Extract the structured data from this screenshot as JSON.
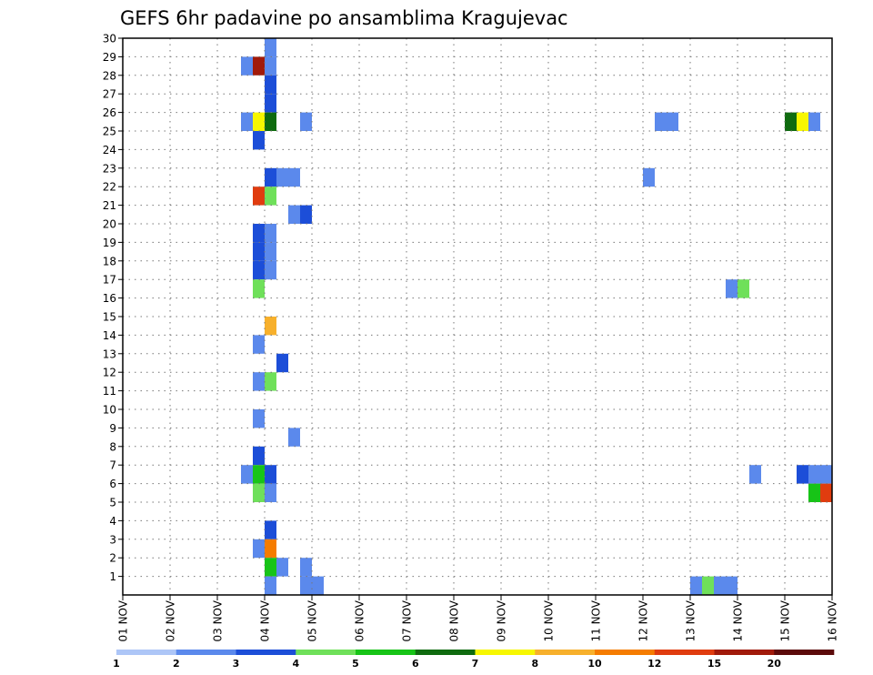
{
  "chart_data": {
    "type": "heatmap",
    "title": "GEFS 6hr padavine po ansamblima Kragujevac",
    "x_ticks": [
      "01 NOV",
      "02 NOV",
      "03 NOV",
      "04 NOV",
      "05 NOV",
      "06 NOV",
      "07 NOV",
      "08 NOV",
      "09 NOV",
      "10 NOV",
      "11 NOV",
      "12 NOV",
      "13 NOV",
      "14 NOV",
      "15 NOV",
      "16 NOV"
    ],
    "y_ticks": [
      "1",
      "2",
      "3",
      "4",
      "5",
      "6",
      "7",
      "8",
      "9",
      "10",
      "11",
      "12",
      "13",
      "14",
      "15",
      "16",
      "17",
      "18",
      "19",
      "20",
      "21",
      "22",
      "23",
      "24",
      "25",
      "26",
      "27",
      "28",
      "29",
      "30"
    ],
    "xlim": [
      "01 NOV",
      "16 NOV"
    ],
    "ylim": [
      0,
      30
    ],
    "x_step": "6hr",
    "grid": true,
    "colorbar": {
      "labels": [
        "1",
        "2",
        "3",
        "4",
        "5",
        "6",
        "7",
        "8",
        "10",
        "12",
        "15",
        "20"
      ],
      "colors": [
        "#adc6f7",
        "#5b89ec",
        "#1c4ed8",
        "#6fe05a",
        "#17c417",
        "#0f6b0f",
        "#f7f700",
        "#f7b02c",
        "#f57c00",
        "#e03c0f",
        "#a11a0a",
        "#5c0a0a"
      ]
    },
    "cells": [
      {
        "x": "03 NOV 12Z",
        "y": 28,
        "c": 1
      },
      {
        "x": "03 NOV 18Z",
        "y": 28,
        "c": 10
      },
      {
        "x": "04 NOV 00Z",
        "y": 28,
        "c": 1
      },
      {
        "x": "04 NOV 00Z",
        "y": 29,
        "c": 1
      },
      {
        "x": "04 NOV 00Z",
        "y": 27,
        "c": 2
      },
      {
        "x": "04 NOV 00Z",
        "y": 26,
        "c": 2
      },
      {
        "x": "03 NOV 12Z",
        "y": 25,
        "c": 1
      },
      {
        "x": "03 NOV 18Z",
        "y": 25,
        "c": 6
      },
      {
        "x": "04 NOV 00Z",
        "y": 25,
        "c": 5
      },
      {
        "x": "04 NOV 18Z",
        "y": 25,
        "c": 1
      },
      {
        "x": "03 NOV 18Z",
        "y": 24,
        "c": 2
      },
      {
        "x": "04 NOV 00Z",
        "y": 22,
        "c": 2
      },
      {
        "x": "04 NOV 06Z",
        "y": 22,
        "c": 1
      },
      {
        "x": "04 NOV 12Z",
        "y": 22,
        "c": 1
      },
      {
        "x": "03 NOV 18Z",
        "y": 21,
        "c": 9
      },
      {
        "x": "04 NOV 00Z",
        "y": 21,
        "c": 3
      },
      {
        "x": "04 NOV 12Z",
        "y": 20,
        "c": 1
      },
      {
        "x": "04 NOV 18Z",
        "y": 20,
        "c": 2
      },
      {
        "x": "03 NOV 18Z",
        "y": 19,
        "c": 2
      },
      {
        "x": "04 NOV 00Z",
        "y": 19,
        "c": 1
      },
      {
        "x": "03 NOV 18Z",
        "y": 18,
        "c": 2
      },
      {
        "x": "04 NOV 00Z",
        "y": 18,
        "c": 1
      },
      {
        "x": "03 NOV 18Z",
        "y": 17,
        "c": 2
      },
      {
        "x": "04 NOV 00Z",
        "y": 17,
        "c": 1
      },
      {
        "x": "03 NOV 18Z",
        "y": 16,
        "c": 3
      },
      {
        "x": "04 NOV 00Z",
        "y": 14,
        "c": 7
      },
      {
        "x": "03 NOV 18Z",
        "y": 13,
        "c": 1
      },
      {
        "x": "04 NOV 06Z",
        "y": 12,
        "c": 2
      },
      {
        "x": "03 NOV 18Z",
        "y": 11,
        "c": 1
      },
      {
        "x": "04 NOV 00Z",
        "y": 11,
        "c": 3
      },
      {
        "x": "03 NOV 18Z",
        "y": 9,
        "c": 1
      },
      {
        "x": "04 NOV 12Z",
        "y": 8,
        "c": 1
      },
      {
        "x": "03 NOV 18Z",
        "y": 7,
        "c": 2
      },
      {
        "x": "03 NOV 12Z",
        "y": 6,
        "c": 1
      },
      {
        "x": "03 NOV 18Z",
        "y": 6,
        "c": 4
      },
      {
        "x": "04 NOV 00Z",
        "y": 6,
        "c": 2
      },
      {
        "x": "03 NOV 18Z",
        "y": 5,
        "c": 3
      },
      {
        "x": "04 NOV 00Z",
        "y": 5,
        "c": 1
      },
      {
        "x": "04 NOV 00Z",
        "y": 3,
        "c": 2
      },
      {
        "x": "03 NOV 18Z",
        "y": 2,
        "c": 1
      },
      {
        "x": "04 NOV 00Z",
        "y": 2,
        "c": 8
      },
      {
        "x": "04 NOV 00Z",
        "y": 1,
        "c": 4
      },
      {
        "x": "04 NOV 06Z",
        "y": 1,
        "c": 1
      },
      {
        "x": "04 NOV 18Z",
        "y": 1,
        "c": 1
      },
      {
        "x": "04 NOV 00Z",
        "y": 0,
        "c": 1
      },
      {
        "x": "04 NOV 18Z",
        "y": 0,
        "c": 1
      },
      {
        "x": "05 NOV 00Z",
        "y": 0,
        "c": 1
      },
      {
        "x": "12 NOV 06Z",
        "y": 25,
        "c": 1
      },
      {
        "x": "12 NOV 12Z",
        "y": 25,
        "c": 1
      },
      {
        "x": "12 NOV 00Z",
        "y": 22,
        "c": 1
      },
      {
        "x": "13 NOV 18Z",
        "y": 16,
        "c": 1
      },
      {
        "x": "14 NOV 00Z",
        "y": 16,
        "c": 3
      },
      {
        "x": "14 NOV 06Z",
        "y": 6,
        "c": 1
      },
      {
        "x": "13 NOV 00Z",
        "y": 0,
        "c": 1
      },
      {
        "x": "13 NOV 06Z",
        "y": 0,
        "c": 3
      },
      {
        "x": "13 NOV 12Z",
        "y": 0,
        "c": 1
      },
      {
        "x": "13 NOV 18Z",
        "y": 0,
        "c": 1
      },
      {
        "x": "15 NOV 00Z",
        "y": 25,
        "c": 5
      },
      {
        "x": "15 NOV 06Z",
        "y": 25,
        "c": 6
      },
      {
        "x": "15 NOV 12Z",
        "y": 25,
        "c": 1
      },
      {
        "x": "15 NOV 06Z",
        "y": 6,
        "c": 2
      },
      {
        "x": "15 NOV 12Z",
        "y": 6,
        "c": 1
      },
      {
        "x": "15 NOV 18Z",
        "y": 6,
        "c": 1
      },
      {
        "x": "15 NOV 12Z",
        "y": 5,
        "c": 4
      },
      {
        "x": "15 NOV 18Z",
        "y": 5,
        "c": 9
      }
    ]
  }
}
